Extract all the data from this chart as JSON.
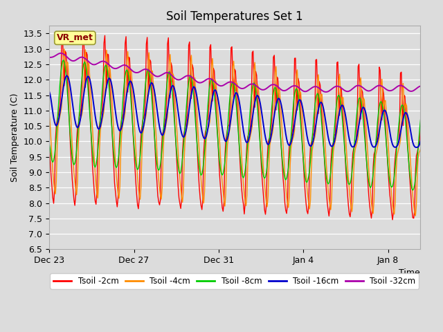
{
  "title": "Soil Temperatures Set 1",
  "ylabel": "Soil Temperature (C)",
  "ylim": [
    6.5,
    13.75
  ],
  "annotation_text": "VR_met",
  "bg_color": "#dcdcdc",
  "colors": {
    "2cm": "#ff0000",
    "4cm": "#ff8c00",
    "8cm": "#00cc00",
    "16cm": "#0000cc",
    "32cm": "#aa00aa"
  },
  "legend_labels": [
    "Tsoil -2cm",
    "Tsoil -4cm",
    "Tsoil -8cm",
    "Tsoil -16cm",
    "Tsoil -32cm"
  ],
  "x_tick_labels": [
    "Dec 23",
    "Dec 27",
    "Dec 31",
    "Jan 4",
    "Jan 8"
  ],
  "x_tick_positions": [
    0,
    4,
    8,
    12,
    16
  ]
}
